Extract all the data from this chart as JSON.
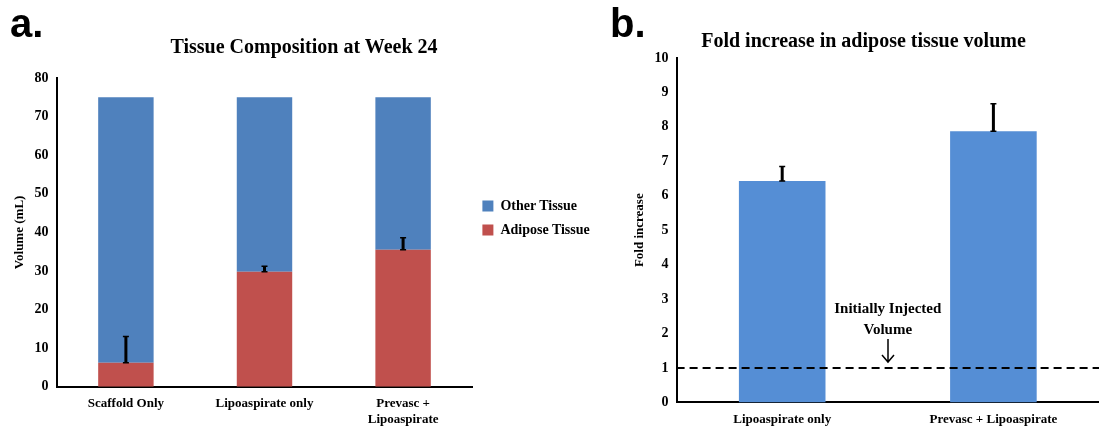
{
  "chart_data": [
    {
      "type": "bar",
      "title": "Tissue Composition at Week 24",
      "ylabel": "Volume (mL)",
      "categories": [
        "Scaffold Only",
        "Lipoaspirate only",
        "Prevasc + Lipoaspirate"
      ],
      "stacked": true,
      "legend": "right",
      "grid": false,
      "ylim": [
        0,
        80
      ],
      "yticks": [
        0,
        10,
        20,
        30,
        40,
        50,
        60,
        70,
        80
      ],
      "series": [
        {
          "name": "Adipose Tissue",
          "color": "#c0504d",
          "values": [
            6.2,
            29.8,
            35.5
          ],
          "errors": [
            [
              6.2,
              13
            ],
            [
              29.8,
              31.2
            ],
            [
              35.5,
              38.6
            ]
          ]
        },
        {
          "name": "Other Tissue",
          "color": "#4f81bd",
          "values": [
            68.8,
            45.2,
            39.5
          ]
        }
      ],
      "annotations": [
        "a."
      ]
    },
    {
      "type": "bar",
      "title": "Fold increase in adipose tissue volume",
      "ylabel": "Fold increase",
      "categories": [
        "Lipoaspirate only",
        "Prevasc + Lipoaspirate"
      ],
      "grid": false,
      "ylim": [
        0,
        10
      ],
      "yticks": [
        0,
        1,
        2,
        3,
        4,
        5,
        6,
        7,
        8,
        9,
        10
      ],
      "values": [
        6.43,
        7.87
      ],
      "color": "#558ed5",
      "errors": [
        [
          6.43,
          6.85
        ],
        [
          7.87,
          8.67
        ]
      ],
      "ref_lines": [
        {
          "axis": "y",
          "value": 1,
          "label": "Initially Injected Volume",
          "line_style": "dashed",
          "color": "#000000"
        }
      ],
      "annotations": [
        "b."
      ]
    }
  ]
}
